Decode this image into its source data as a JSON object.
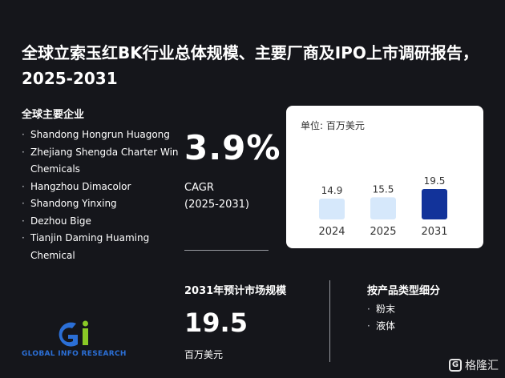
{
  "title": "全球立索玉红BK行业总体规模、主要厂商及IPO上市调研报告，2025-2031",
  "companies": {
    "heading": "全球主要企业",
    "items": [
      "Shandong Hongrun Huagong",
      "Zhejiang Shengda Charter Win Chemicals",
      "Hangzhou Dimacolor",
      "Shandong Yinxing",
      "Dezhou Bige",
      "Tianjin Daming Huaming Chemical"
    ]
  },
  "cagr": {
    "value": "3.9%",
    "label": "CAGR",
    "period": "(2025-2031)"
  },
  "chart_data": {
    "type": "bar",
    "unit_label": "单位: 百万美元",
    "categories": [
      "2024",
      "2025",
      "2031"
    ],
    "values": [
      14.9,
      15.5,
      19.5
    ],
    "value_labels": [
      "14.9",
      "15.5",
      "19.5"
    ],
    "colors": [
      "#d6e8fb",
      "#d6e8fb",
      "#12339a"
    ],
    "ylim": [
      0,
      21
    ]
  },
  "market_size": {
    "heading": "2031年预计市场规模",
    "value": "19.5",
    "unit": "百万美元"
  },
  "segments": {
    "heading": "按产品类型细分",
    "items": [
      "粉末",
      "液体"
    ]
  },
  "logo": {
    "text": "GLOBAL INFO RESEARCH"
  },
  "brand": {
    "icon": "G",
    "name": "格隆汇"
  }
}
